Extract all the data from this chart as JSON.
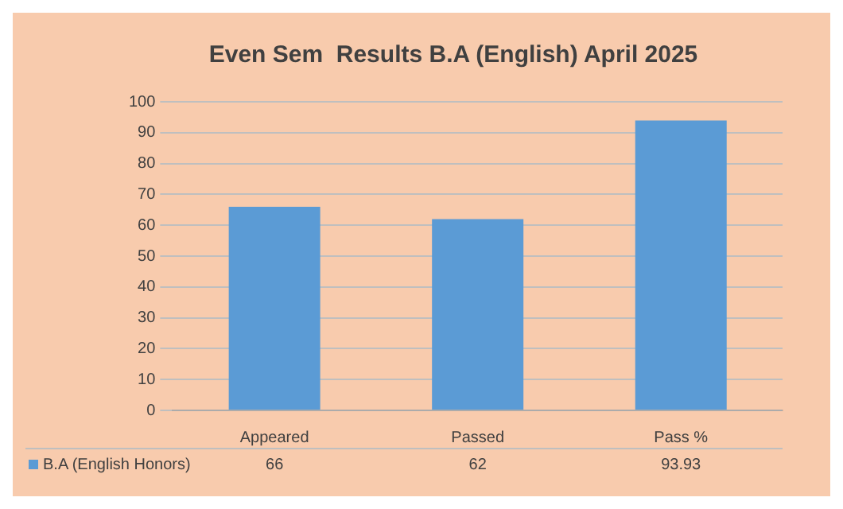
{
  "chart_data": {
    "type": "bar",
    "title": "Even Sem  Results B.A (English) April 2025",
    "categories": [
      "Appeared",
      "Passed",
      "Pass %"
    ],
    "series": [
      {
        "name": "B.A (English Honors)",
        "color": "#5b9bd5",
        "values": [
          66,
          62,
          93.93
        ]
      }
    ],
    "ylim": [
      0,
      100
    ],
    "yticks": [
      0,
      10,
      20,
      30,
      40,
      50,
      60,
      70,
      80,
      90,
      100
    ],
    "grid": "y",
    "legend": "bottom",
    "data_labels": true
  }
}
